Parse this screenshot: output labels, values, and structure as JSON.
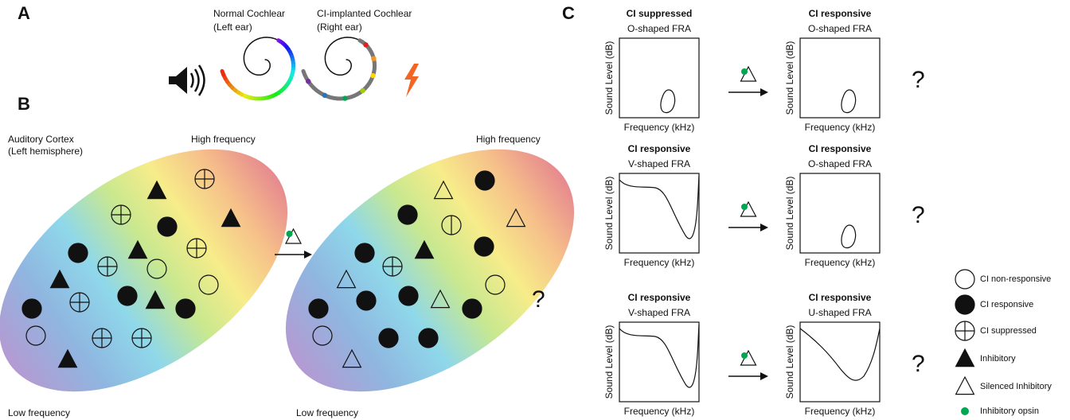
{
  "panel_labels": [
    "A",
    "B",
    "C"
  ],
  "panel_a": {
    "normal": {
      "title": "Normal Cochlear",
      "subtitle": "(Left ear)"
    },
    "implanted": {
      "title": "CI-implanted Cochlear",
      "subtitle": "(Right ear)"
    }
  },
  "panel_b": {
    "region": {
      "title": "Auditory Cortex",
      "subtitle": "(Left hemisphere)"
    },
    "before": {
      "high": "High frequency",
      "low": "Low frequency"
    },
    "after": {
      "high": "High frequency",
      "low": "Low frequency",
      "question": "?"
    }
  },
  "panel_c": {
    "rows": [
      {
        "left": {
          "title": "CI suppressed",
          "subtitle": "O-shaped FRA",
          "ylabel": "Sound Level (dB)",
          "xlabel": "Frequency (kHz)"
        },
        "right": {
          "title": "CI responsive",
          "subtitle": "O-shaped FRA",
          "ylabel": "Sound Level (dB)",
          "xlabel": "Frequency (kHz)"
        },
        "question": "?"
      },
      {
        "left": {
          "title": "CI responsive",
          "subtitle": "V-shaped FRA",
          "ylabel": "Sound Level (dB)",
          "xlabel": "Frequency (kHz)"
        },
        "right": {
          "title": "CI responsive",
          "subtitle": "O-shaped FRA",
          "ylabel": "Sound Level (dB)",
          "xlabel": "Frequency (kHz)"
        },
        "question": "?"
      },
      {
        "left": {
          "title": "CI responsive",
          "subtitle": "V-shaped FRA",
          "ylabel": "Sound Level (dB)",
          "xlabel": "Frequency (kHz)"
        },
        "right": {
          "title": "CI responsive",
          "subtitle": "U-shaped FRA",
          "ylabel": "Sound Level (dB)",
          "xlabel": "Frequency (kHz)"
        },
        "question": "?"
      }
    ]
  },
  "legend": [
    "CI non-responsive",
    "CI responsive",
    "CI suppressed",
    "Inhibitory",
    "Silenced Inhibitory",
    "Inhibitory opsin"
  ]
}
